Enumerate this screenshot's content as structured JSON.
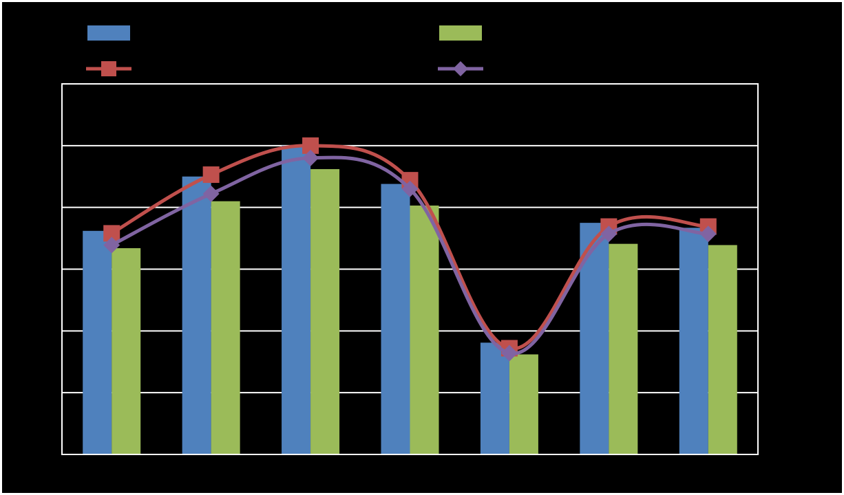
{
  "chart_data": {
    "type": "bar",
    "title": "",
    "xlabel": "",
    "ylabel": "",
    "ylim": [
      0,
      6
    ],
    "y_grid_step": 1,
    "grid": true,
    "legend": "top",
    "categories": [
      "",
      "",
      "",
      "",
      "",
      "",
      ""
    ],
    "series": [
      {
        "kind": "bar",
        "color": "#4F81BD",
        "values": [
          3.62,
          4.5,
          5.0,
          4.38,
          1.81,
          3.75,
          3.67
        ]
      },
      {
        "kind": "bar",
        "color": "#9BBB59",
        "values": [
          3.34,
          4.1,
          4.62,
          4.03,
          1.62,
          3.41,
          3.39
        ]
      },
      {
        "kind": "line",
        "color": "#C0504D",
        "marker": "square",
        "smooth": true,
        "values": [
          3.58,
          4.53,
          5.0,
          4.44,
          1.72,
          3.69,
          3.69
        ]
      },
      {
        "kind": "line",
        "color": "#8064A2",
        "marker": "diamond",
        "smooth": true,
        "values": [
          3.39,
          4.22,
          4.8,
          4.3,
          1.64,
          3.57,
          3.57
        ]
      }
    ]
  }
}
